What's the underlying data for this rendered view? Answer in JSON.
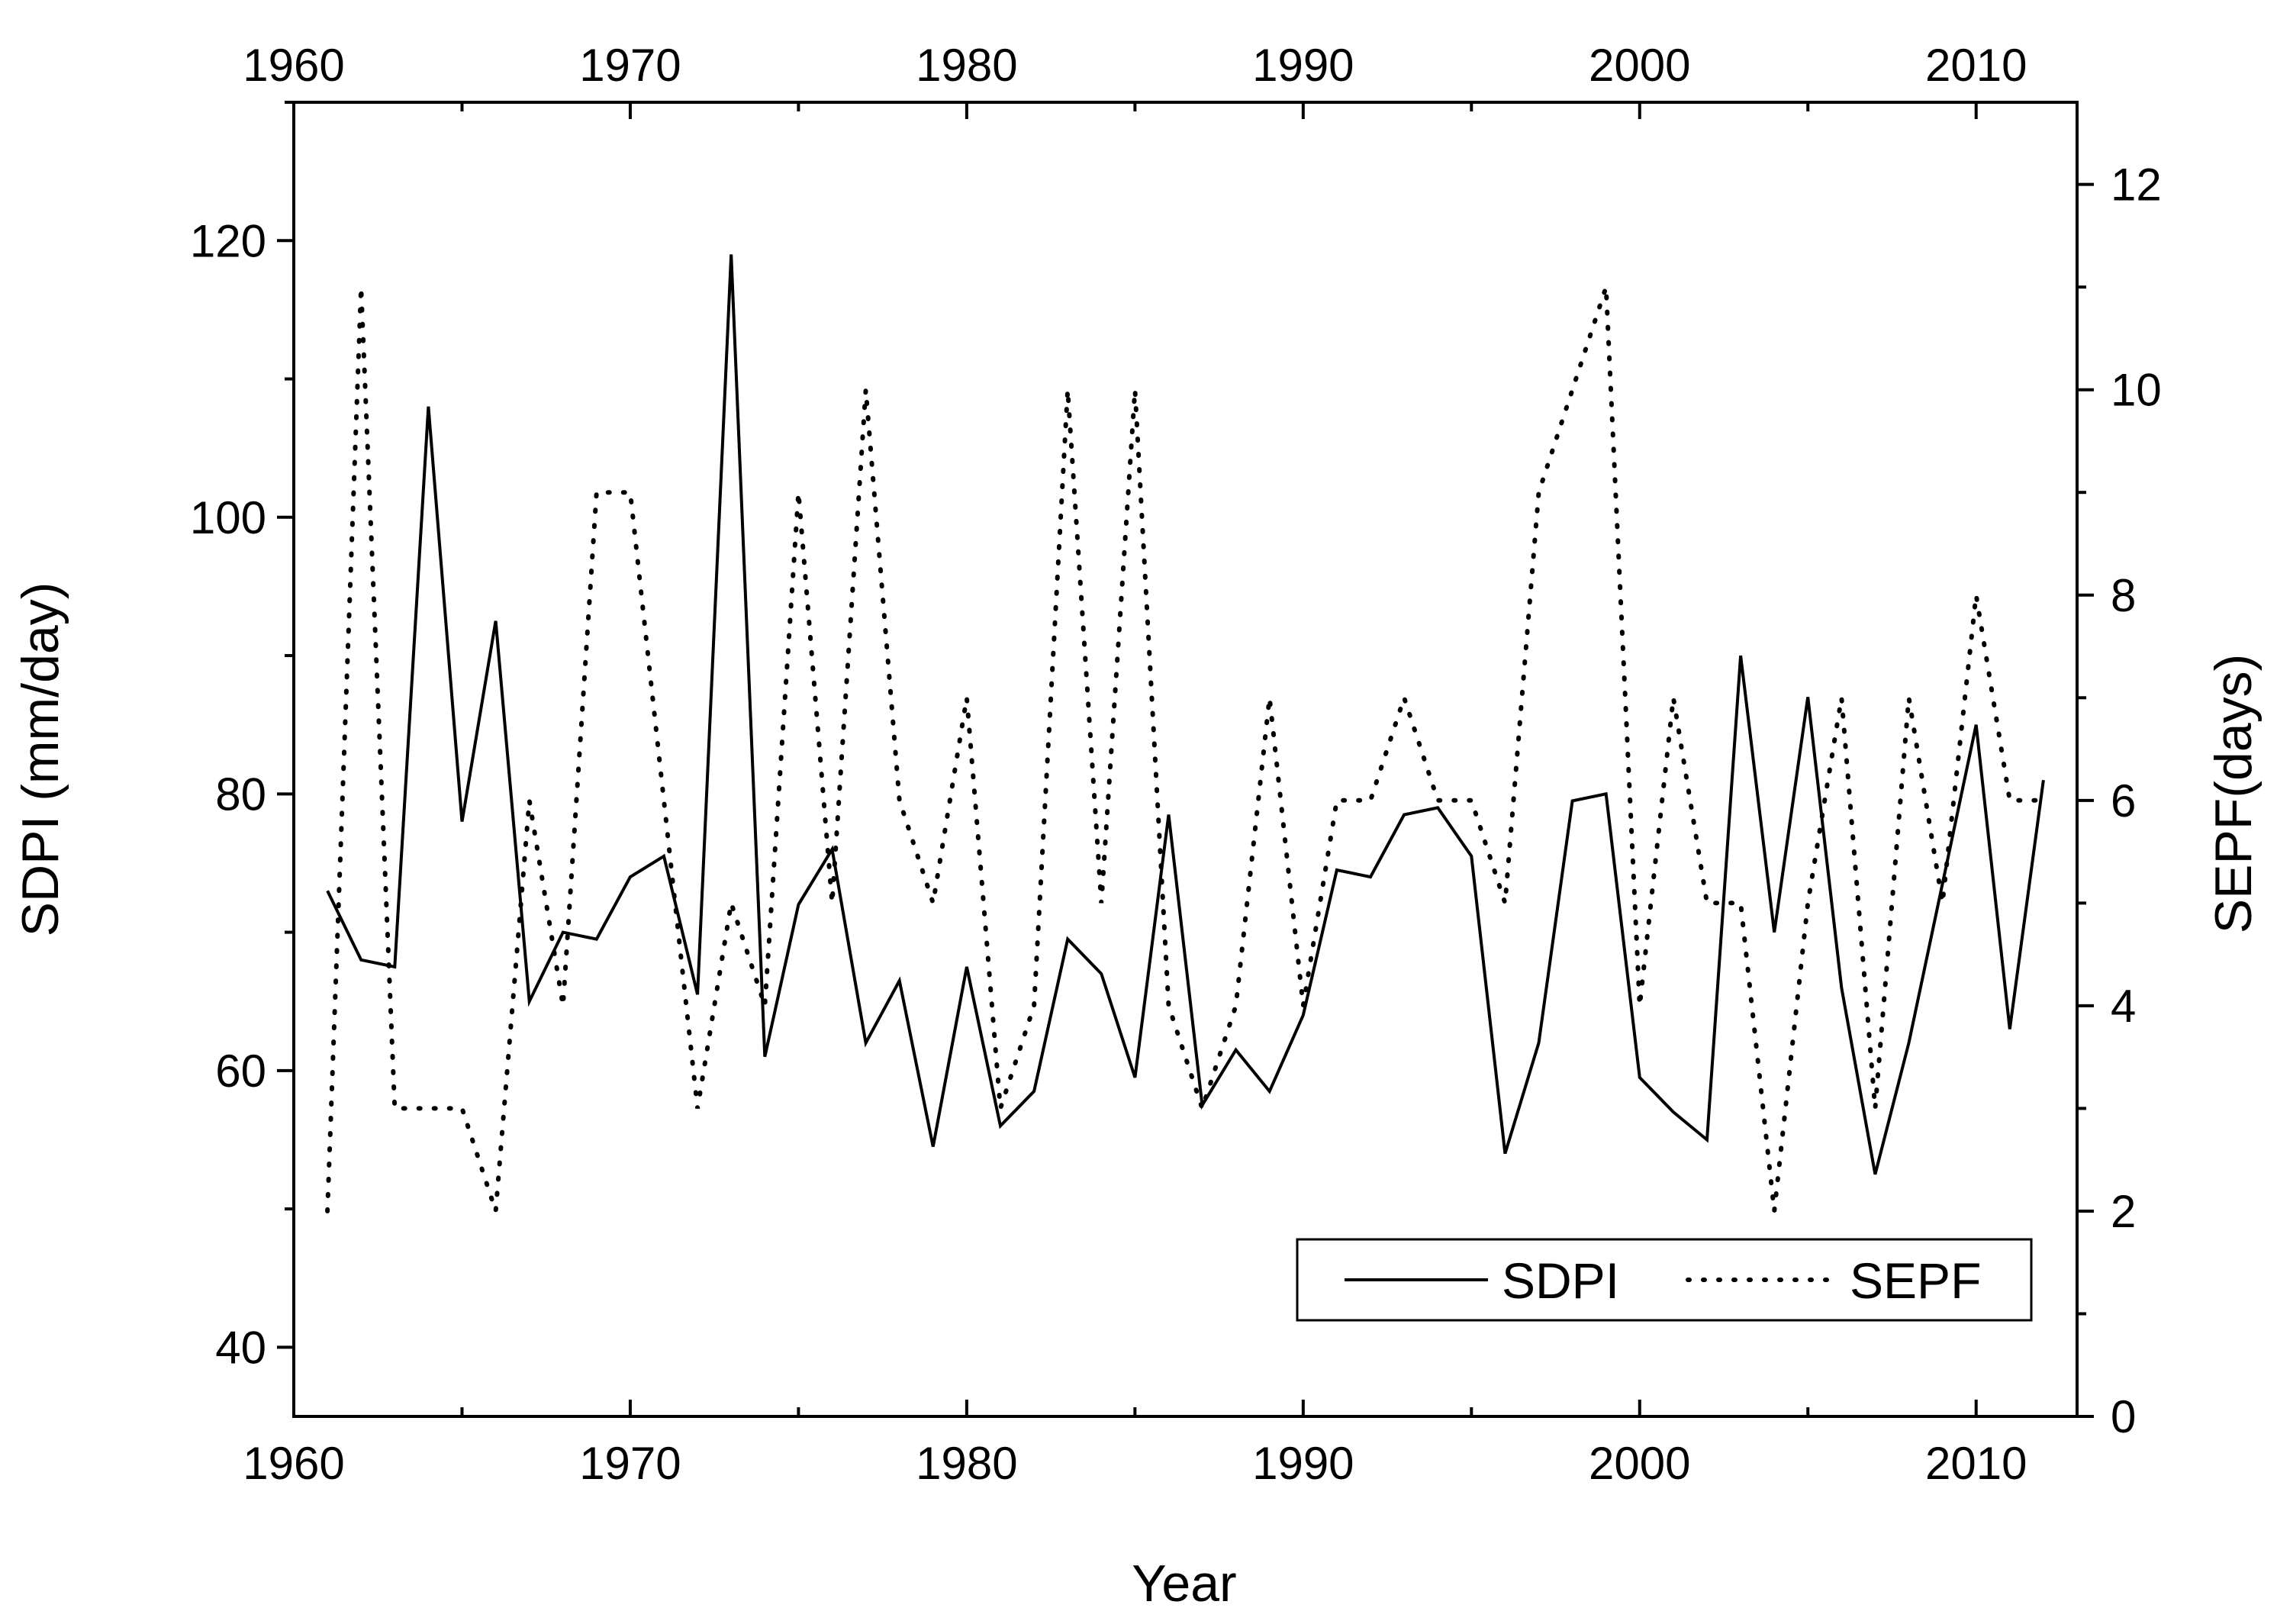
{
  "chart_data": {
    "type": "line",
    "title": "",
    "xlabel": "Year",
    "ylabel_left": "SDPI (mm/day)",
    "ylabel_right": "SEPF(days)",
    "xlim": [
      1960,
      2013
    ],
    "ylim_left": [
      35,
      130
    ],
    "ylim_right": [
      0,
      12.8
    ],
    "x_ticks": [
      1960,
      1970,
      1980,
      1990,
      2000,
      2010
    ],
    "x_tick_labels": [
      "1960",
      "1970",
      "1980",
      "1990",
      "2000",
      "2010"
    ],
    "y_left_ticks": [
      40,
      60,
      80,
      100,
      120
    ],
    "y_left_tick_labels": [
      "40",
      "60",
      "80",
      "100",
      "120"
    ],
    "y_right_ticks": [
      0,
      2,
      4,
      6,
      8,
      10,
      12
    ],
    "y_right_tick_labels": [
      "0",
      "2",
      "4",
      "6",
      "8",
      "10",
      "12"
    ],
    "grid": false,
    "legend_position": "bottom-right",
    "x": [
      1961,
      1962,
      1963,
      1964,
      1965,
      1966,
      1967,
      1968,
      1969,
      1970,
      1971,
      1972,
      1973,
      1974,
      1975,
      1976,
      1977,
      1978,
      1979,
      1980,
      1981,
      1982,
      1983,
      1984,
      1985,
      1986,
      1987,
      1988,
      1989,
      1990,
      1991,
      1992,
      1993,
      1994,
      1995,
      1996,
      1997,
      1998,
      1999,
      2000,
      2001,
      2002,
      2003,
      2004,
      2005,
      2006,
      2007,
      2008,
      2009,
      2010,
      2011,
      2012
    ],
    "series": [
      {
        "name": "SDPI",
        "axis": "left",
        "style": "solid",
        "values": [
          73,
          68,
          67.5,
          108,
          78,
          92.5,
          65,
          70,
          69.5,
          74,
          75.5,
          65.5,
          119,
          61,
          72,
          76,
          62,
          66.5,
          54.5,
          67.5,
          56,
          58.5,
          69.5,
          67,
          59.5,
          78.5,
          57.5,
          61.5,
          58.5,
          64,
          74.5,
          74,
          78.5,
          79,
          75.5,
          54,
          62,
          79.5,
          80,
          59.5,
          57,
          55,
          90,
          70,
          87,
          66,
          52.5,
          62,
          73.5,
          85,
          63,
          81
        ]
      },
      {
        "name": "SEPF",
        "axis": "right",
        "style": "dotted",
        "values": [
          2,
          11,
          3,
          3,
          3,
          2,
          6,
          4,
          9,
          9,
          6,
          3,
          5,
          4,
          9,
          5,
          10,
          6,
          5,
          7,
          3,
          4,
          10,
          5,
          10,
          4,
          3,
          4,
          7,
          4,
          6,
          6,
          7,
          6,
          6,
          5,
          9,
          10,
          11,
          4,
          7,
          5,
          5,
          2,
          5,
          7,
          3,
          7,
          5,
          8,
          6,
          6
        ]
      }
    ]
  }
}
